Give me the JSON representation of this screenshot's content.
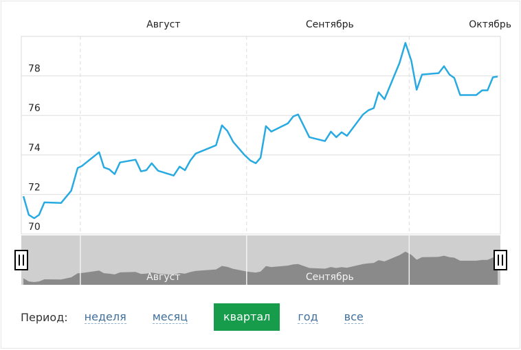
{
  "chart_data": {
    "type": "line",
    "x": [
      -10.6,
      -9.6,
      -8.6,
      -7.7,
      -6.7,
      -3.6,
      -1.7,
      -0.5,
      0.3,
      3.5,
      4.4,
      5.4,
      6.4,
      7.4,
      10.3,
      11.3,
      12.3,
      13.3,
      14.5,
      17.4,
      18.5,
      19.5,
      20.5,
      21.5,
      25.3,
      26.4,
      27.4,
      28.5,
      30.6,
      31.7,
      32.7,
      33.6,
      34.6,
      35.6,
      38.7,
      39.7,
      40.6,
      42.7,
      45.6,
      46.7,
      47.7,
      48.7,
      49.7,
      52.7,
      53.7,
      54.7,
      55.6,
      56.7,
      59.5,
      60.6,
      61.7,
      62.7,
      63.7,
      66.8,
      67.8,
      68.8,
      69.7,
      70.8,
      73.8,
      74.9,
      75.9,
      76.9,
      77.8
    ],
    "values": [
      71.91,
      70.97,
      70.8,
      70.97,
      71.6,
      71.57,
      72.19,
      73.34,
      73.44,
      74.14,
      73.37,
      73.27,
      73.03,
      73.62,
      73.76,
      73.17,
      73.23,
      73.58,
      73.2,
      72.96,
      73.41,
      73.23,
      73.72,
      74.07,
      74.49,
      75.5,
      75.22,
      74.66,
      74.0,
      73.72,
      73.58,
      73.86,
      75.46,
      75.18,
      75.6,
      75.95,
      76.05,
      74.9,
      74.7,
      75.18,
      74.9,
      75.15,
      74.97,
      76.05,
      76.26,
      76.37,
      77.17,
      76.82,
      78.66,
      79.67,
      78.77,
      77.3,
      78.07,
      78.14,
      78.49,
      78.07,
      77.9,
      77.03,
      77.03,
      77.27,
      77.27,
      77.93,
      77.97
    ],
    "color": "#27aae1",
    "xlim": [
      -11,
      78.3
    ],
    "xticks": [
      {
        "value": 15.5,
        "label": "Август"
      },
      {
        "value": 46.5,
        "label": "Сентябрь"
      },
      {
        "value": 76.4,
        "label": "Октябрь"
      }
    ],
    "month_lines": [
      0,
      31,
      61.3
    ],
    "ylim": [
      70,
      80
    ],
    "yticks": [
      70,
      72,
      74,
      76,
      78
    ],
    "grid": true
  },
  "controls": {
    "label": "Период:",
    "options": [
      "неделя",
      "месяц",
      "квартал",
      "год",
      "все"
    ],
    "active": 2
  }
}
